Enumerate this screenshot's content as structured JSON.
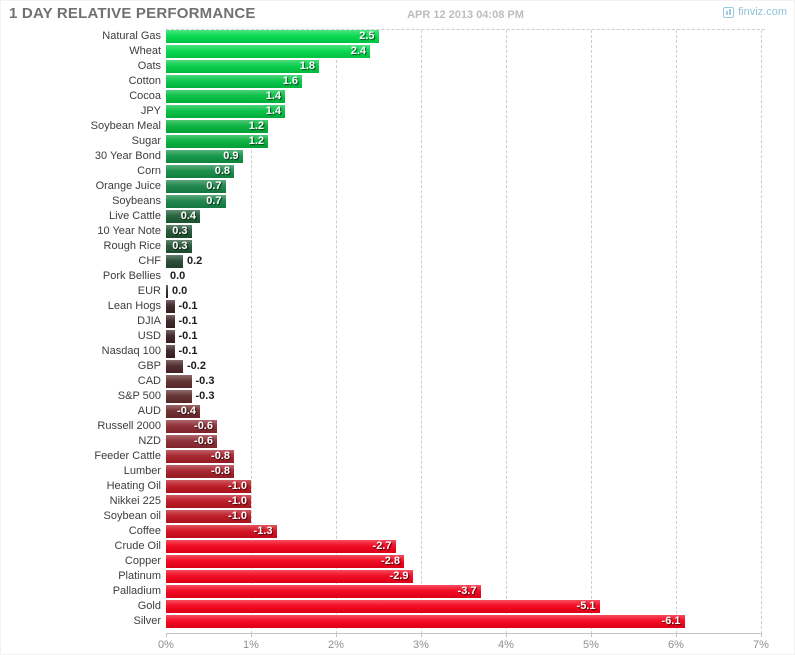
{
  "header": {
    "title": "1 DAY RELATIVE PERFORMANCE",
    "timestamp": "APR 12 2013 04:08 PM",
    "brand": "finviz.com"
  },
  "colors": {
    "title_text": "#717171",
    "timestamp_text": "#bdbdbd",
    "brand_blue": "#8fc2da",
    "grid": "#cdcdcd",
    "axis": "#c4c4c4",
    "row_label_text": "#3d3d3d",
    "tick_label_text": "#909090",
    "max_green": "#00d94a",
    "max_red": "#f30019",
    "near_zero": "#282828"
  },
  "chart_data": {
    "type": "bar",
    "orientation": "horizontal",
    "title": "1 DAY RELATIVE PERFORMANCE",
    "value_unit": "%",
    "x_axis_ticks": [
      "0%",
      "1%",
      "2%",
      "3%",
      "4%",
      "5%",
      "6%",
      "7%"
    ],
    "x_range_pct": [
      0,
      7
    ],
    "grid": "dashed-vertical",
    "bar_length_uses_absolute_value": true,
    "items": [
      {
        "label": "Natural Gas",
        "value": 2.5
      },
      {
        "label": "Wheat",
        "value": 2.4
      },
      {
        "label": "Oats",
        "value": 1.8
      },
      {
        "label": "Cotton",
        "value": 1.6
      },
      {
        "label": "Cocoa",
        "value": 1.4
      },
      {
        "label": "JPY",
        "value": 1.4
      },
      {
        "label": "Soybean Meal",
        "value": 1.2
      },
      {
        "label": "Sugar",
        "value": 1.2
      },
      {
        "label": "30 Year Bond",
        "value": 0.9
      },
      {
        "label": "Corn",
        "value": 0.8
      },
      {
        "label": "Orange Juice",
        "value": 0.7
      },
      {
        "label": "Soybeans",
        "value": 0.7
      },
      {
        "label": "Live Cattle",
        "value": 0.4
      },
      {
        "label": "10 Year Note",
        "value": 0.3
      },
      {
        "label": "Rough Rice",
        "value": 0.3
      },
      {
        "label": "CHF",
        "value": 0.2
      },
      {
        "label": "Pork Bellies",
        "value": 0.0
      },
      {
        "label": "EUR",
        "value": 0.0,
        "sliver": true
      },
      {
        "label": "Lean Hogs",
        "value": -0.1
      },
      {
        "label": "DJIA",
        "value": -0.1
      },
      {
        "label": "USD",
        "value": -0.1
      },
      {
        "label": "Nasdaq 100",
        "value": -0.1
      },
      {
        "label": "GBP",
        "value": -0.2
      },
      {
        "label": "CAD",
        "value": -0.3
      },
      {
        "label": "S&P 500",
        "value": -0.3
      },
      {
        "label": "AUD",
        "value": -0.4
      },
      {
        "label": "Russell 2000",
        "value": -0.6
      },
      {
        "label": "NZD",
        "value": -0.6
      },
      {
        "label": "Feeder Cattle",
        "value": -0.8
      },
      {
        "label": "Lumber",
        "value": -0.8
      },
      {
        "label": "Heating Oil",
        "value": -1.0
      },
      {
        "label": "Nikkei 225",
        "value": -1.0
      },
      {
        "label": "Soybean oil",
        "value": -1.0
      },
      {
        "label": "Coffee",
        "value": -1.3
      },
      {
        "label": "Crude Oil",
        "value": -2.7
      },
      {
        "label": "Copper",
        "value": -2.8
      },
      {
        "label": "Platinum",
        "value": -2.9
      },
      {
        "label": "Palladium",
        "value": -3.7
      },
      {
        "label": "Gold",
        "value": -5.1
      },
      {
        "label": "Silver",
        "value": -6.1
      }
    ]
  }
}
